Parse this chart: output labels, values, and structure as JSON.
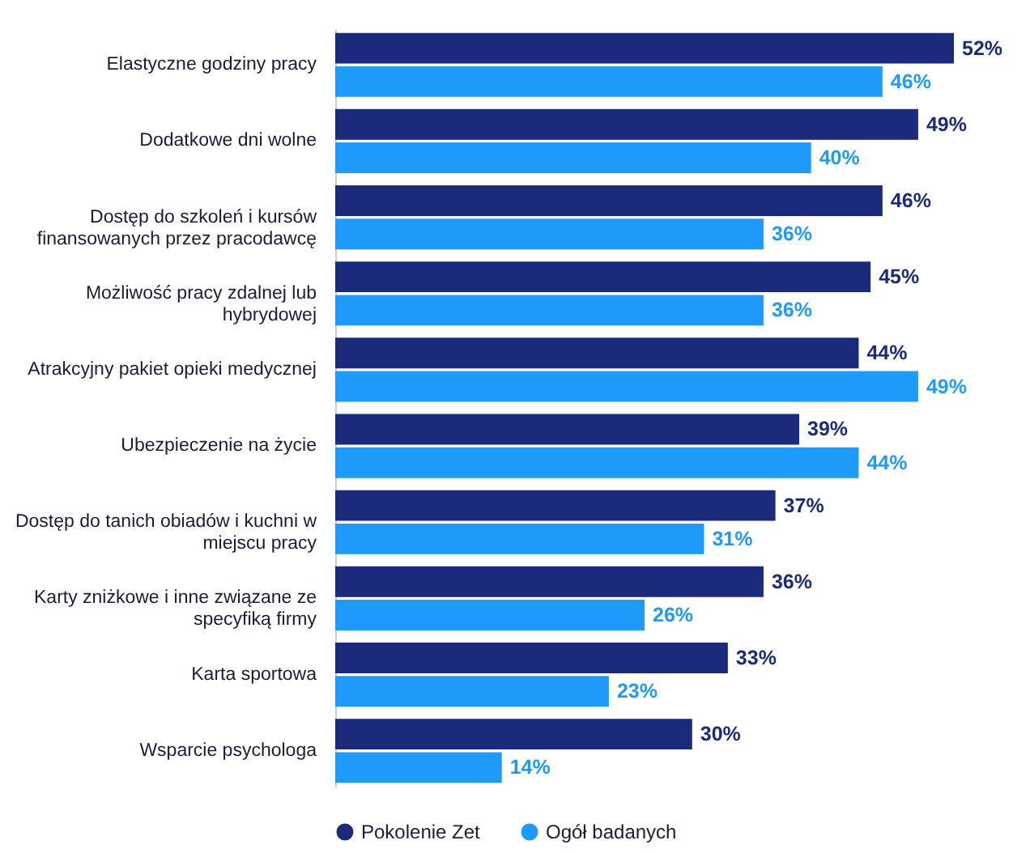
{
  "chart_data": {
    "type": "bar",
    "orientation": "horizontal",
    "legend": "bottom",
    "grid": false,
    "categories": [
      "Elastyczne godziny pracy",
      "Dodatkowe dni wolne",
      "Dostęp do szkoleń i kursów\nfinansowanych przez pracodawcę",
      "Możliwość pracy zdalnej lub\nhybrydowej",
      "Atrakcyjny pakiet opieki medycznej",
      "Ubezpieczenie na życie",
      "Dostęp do tanich obiadów i kuchni w\nmiejscu pracy",
      "Karty zniżkowe i inne związane ze\nspecyfiką firmy",
      "Karta sportowa",
      "Wsparcie psychologa"
    ],
    "series": [
      {
        "name": "Pokolenie Zet",
        "color": "#1b2a7a",
        "values": [
          52,
          49,
          46,
          45,
          44,
          39,
          37,
          36,
          33,
          30
        ],
        "value_labels": [
          "52%",
          "49%",
          "46%",
          "45%",
          "44%",
          "39%",
          "37%",
          "36%",
          "33%",
          "30%"
        ]
      },
      {
        "name": "Ogół badanych",
        "color": "#1e9bfa",
        "values": [
          46,
          40,
          36,
          36,
          49,
          44,
          31,
          26,
          23,
          14
        ],
        "value_labels": [
          "46%",
          "40%",
          "36%",
          "36%",
          "49%",
          "44%",
          "31%",
          "26%",
          "23%",
          "14%"
        ]
      }
    ]
  }
}
